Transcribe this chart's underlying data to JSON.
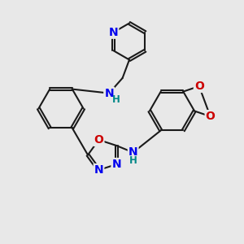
{
  "bg_color": "#e8e8e8",
  "bond_color": "#1a1a1a",
  "N_color": "#0000ee",
  "O_color": "#cc0000",
  "H_color": "#008888",
  "line_width": 1.5,
  "dbo": 0.055,
  "fs": 10.0,
  "fsh": 8.5,
  "figsize": [
    3.0,
    3.0
  ],
  "dpi": 100,
  "xlim": [
    0,
    10
  ],
  "ylim": [
    0,
    10
  ]
}
